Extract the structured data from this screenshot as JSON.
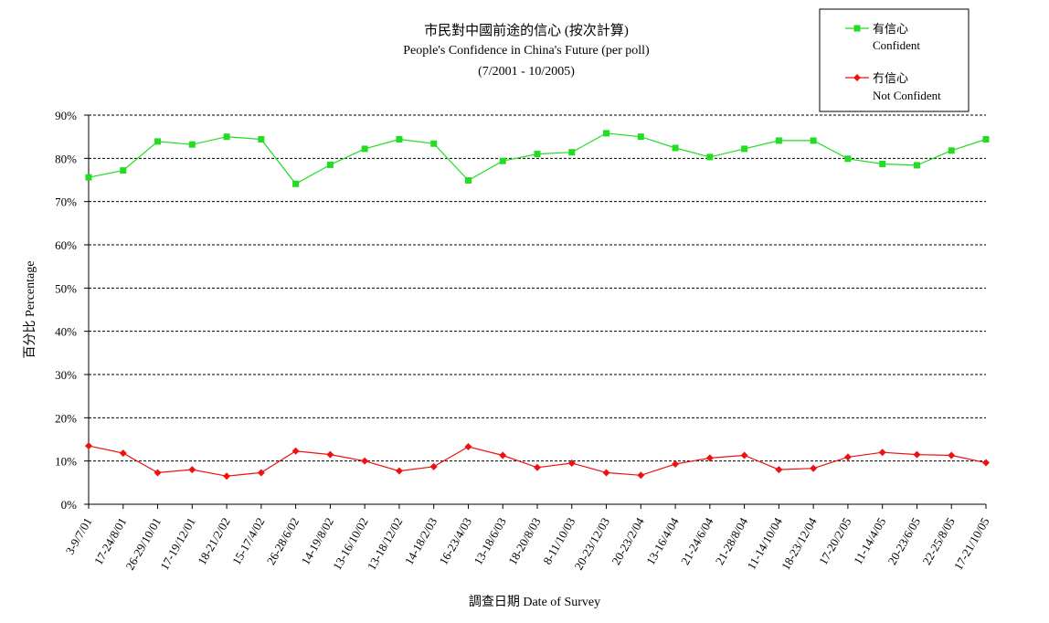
{
  "chart_data": {
    "type": "line",
    "title_zh": "市民對中國前途的信心 (按次計算)",
    "title_en": "People's Confidence in China's Future (per poll)",
    "subtitle": "(7/2001 - 10/2005)",
    "xlabel": "調查日期 Date of Survey",
    "ylabel": "百分比 Percentage",
    "ylim": [
      0,
      90
    ],
    "yticks": [
      "0%",
      "10%",
      "20%",
      "30%",
      "40%",
      "50%",
      "60%",
      "70%",
      "80%",
      "90%"
    ],
    "grid": true,
    "legend_position": "top-right",
    "categories": [
      "3-9/7/01",
      "17-24/8/01",
      "26-29/10/01",
      "17-19/12/01",
      "18-21/2/02",
      "15-17/4/02",
      "26-28/6/02",
      "14-19/8/02",
      "13-16/10/02",
      "13-18/12/02",
      "14-18/2/03",
      "16-23/4/03",
      "13-18/6/03",
      "18-20/8/03",
      "8-11/10/03",
      "20-23/12/03",
      "20-23/2/04",
      "13-16/4/04",
      "21-24/6/04",
      "21-28/8/04",
      "11-14/10/04",
      "18-23/12/04",
      "17-20/2/05",
      "11-14/4/05",
      "20-23/6/05",
      "22-25/8/05",
      "17-21/10/05"
    ],
    "series": [
      {
        "name_zh": "有信心",
        "name_en": "Confident",
        "color": "#22dd22",
        "marker": "square",
        "values": [
          75.6,
          77.2,
          83.9,
          83.2,
          85.0,
          84.4,
          74.1,
          78.5,
          82.2,
          84.4,
          83.4,
          74.9,
          79.4,
          81.0,
          81.4,
          85.8,
          85.0,
          82.4,
          80.3,
          82.2,
          84.1,
          84.1,
          79.9,
          78.7,
          78.4,
          81.8,
          84.4
        ]
      },
      {
        "name_zh": "冇信心",
        "name_en": "Not Confident",
        "color": "#ee1111",
        "marker": "diamond",
        "values": [
          13.5,
          11.8,
          7.3,
          8.0,
          6.5,
          7.3,
          12.3,
          11.5,
          10.0,
          7.7,
          8.7,
          13.3,
          11.3,
          8.5,
          9.5,
          7.3,
          6.7,
          9.3,
          10.7,
          11.3,
          8.0,
          8.3,
          10.9,
          12.0,
          11.5,
          11.3,
          9.6
        ]
      }
    ]
  }
}
